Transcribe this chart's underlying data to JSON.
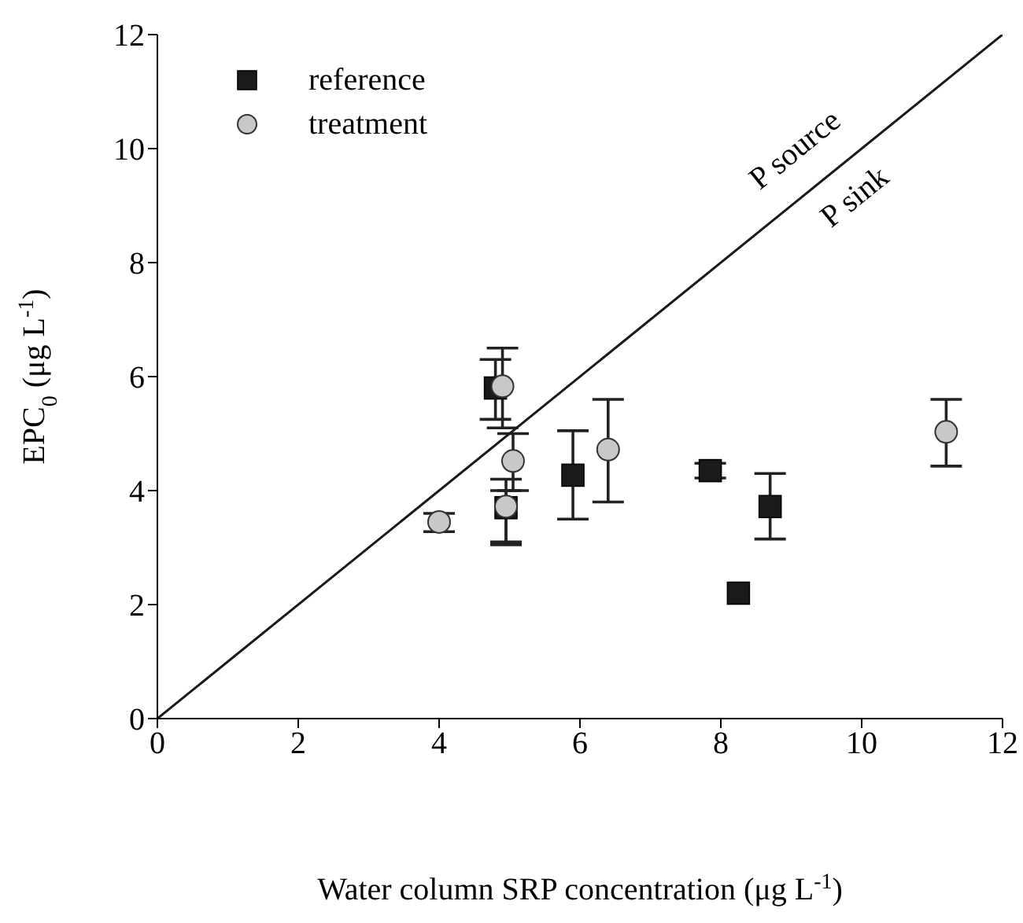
{
  "chart_data": {
    "type": "scatter",
    "xlabel": "Water column SRP concentration (μg L$^{-1}$)",
    "ylabel": "EPC$_{0}$ (μg L$^{-1}$)",
    "xlim": [
      0,
      12
    ],
    "xticks": [
      0,
      2,
      4,
      6,
      8,
      10,
      12
    ],
    "ylim": [
      0,
      12
    ],
    "yticks": [
      0,
      2,
      4,
      6,
      8,
      10,
      12
    ],
    "legend": "top left",
    "grid": false,
    "annotations": [
      "P source",
      "P sink"
    ],
    "series": [
      {
        "name": "reference",
        "marker": "square",
        "color": "#1a1a1a",
        "x": [
          4.8,
          4.95,
          5.9,
          7.85,
          8.25,
          8.7
        ],
        "values": [
          5.8,
          3.7,
          4.27,
          4.35,
          2.2,
          3.72
        ],
        "errors": [
          [
            5.25,
            6.3
          ],
          [
            3.1,
            4.2
          ],
          [
            3.5,
            5.05
          ],
          [
            4.22,
            4.48
          ],
          null,
          [
            3.15,
            4.3
          ]
        ]
      },
      {
        "name": "treatment",
        "marker": "circle",
        "color": "#c8c8c8",
        "x": [
          4.0,
          4.9,
          4.95,
          5.05,
          6.4,
          11.2
        ],
        "values": [
          3.45,
          5.83,
          3.72,
          4.52,
          4.72,
          5.03
        ],
        "errors": [
          [
            3.28,
            3.6
          ],
          [
            5.1,
            6.5
          ],
          [
            3.05,
            4.0
          ],
          [
            4.0,
            5.0
          ],
          [
            3.8,
            5.6
          ],
          [
            4.43,
            5.6
          ]
        ]
      },
      {
        "type": "line",
        "color": "#1a1a1a",
        "marker": "none",
        "x": [
          0,
          12
        ],
        "values": [
          0,
          12
        ]
      }
    ]
  }
}
